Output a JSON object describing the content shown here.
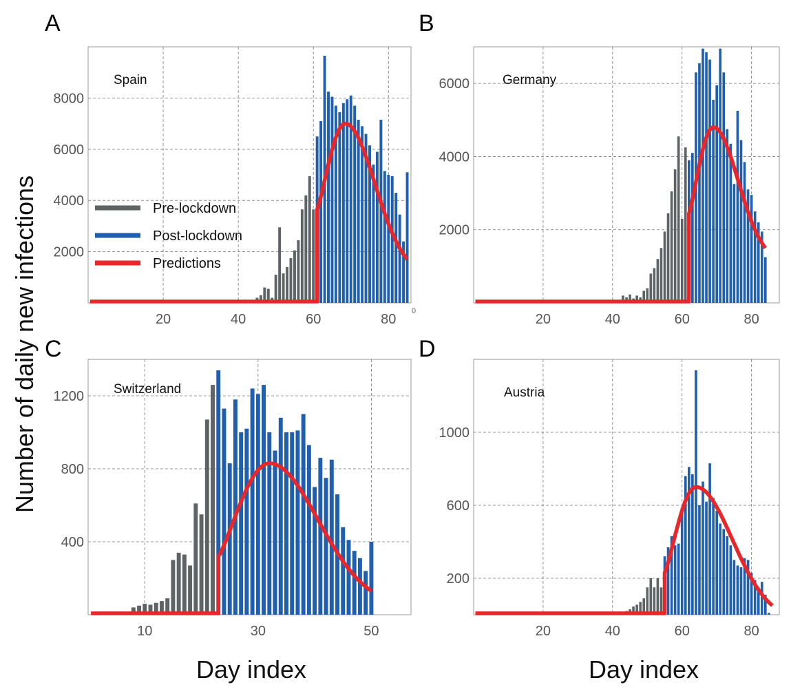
{
  "figure": {
    "ylabel": "Number of daily new infections",
    "xlabel_left": "Day index",
    "xlabel_right": "Day index",
    "stray_mark": "0",
    "colors": {
      "pre": "#5e6366",
      "post": "#1f5fae",
      "pred": "#e8272a",
      "grid": "#777777",
      "frame": "#999999"
    },
    "legend": {
      "placement": "left-middle of panel A",
      "entries": [
        "Pre-lockdown",
        "Post-lockdown",
        "Predictions"
      ]
    }
  },
  "chart_data": [
    {
      "panel": "A",
      "type": "bar",
      "label": "Spain",
      "xlim": [
        0,
        86
      ],
      "ylim": [
        0,
        10000
      ],
      "xticks": [
        20,
        40,
        60,
        80
      ],
      "yticks": [
        2000,
        4000,
        6000,
        8000
      ],
      "lockdown_day": 61,
      "bars": [
        {
          "x": 44,
          "y": 100
        },
        {
          "x": 45,
          "y": 200
        },
        {
          "x": 46,
          "y": 300
        },
        {
          "x": 47,
          "y": 600
        },
        {
          "x": 48,
          "y": 550
        },
        {
          "x": 49,
          "y": 200
        },
        {
          "x": 50,
          "y": 1100
        },
        {
          "x": 51,
          "y": 2950
        },
        {
          "x": 52,
          "y": 1150
        },
        {
          "x": 53,
          "y": 1400
        },
        {
          "x": 54,
          "y": 1750
        },
        {
          "x": 55,
          "y": 2050
        },
        {
          "x": 56,
          "y": 2450
        },
        {
          "x": 57,
          "y": 3650
        },
        {
          "x": 58,
          "y": 4200
        },
        {
          "x": 59,
          "y": 4950
        },
        {
          "x": 60,
          "y": 3650
        },
        {
          "x": 61,
          "y": 6500
        },
        {
          "x": 62,
          "y": 7100
        },
        {
          "x": 63,
          "y": 9650
        },
        {
          "x": 64,
          "y": 8250
        },
        {
          "x": 65,
          "y": 8050
        },
        {
          "x": 66,
          "y": 7700
        },
        {
          "x": 67,
          "y": 7450
        },
        {
          "x": 68,
          "y": 7800
        },
        {
          "x": 69,
          "y": 7950
        },
        {
          "x": 70,
          "y": 8100
        },
        {
          "x": 71,
          "y": 7700
        },
        {
          "x": 72,
          "y": 7150
        },
        {
          "x": 73,
          "y": 6900
        },
        {
          "x": 74,
          "y": 6600
        },
        {
          "x": 75,
          "y": 6150
        },
        {
          "x": 76,
          "y": 5400
        },
        {
          "x": 77,
          "y": 5900
        },
        {
          "x": 78,
          "y": 7150
        },
        {
          "x": 79,
          "y": 5150
        },
        {
          "x": 80,
          "y": 5000
        },
        {
          "x": 81,
          "y": 4950
        },
        {
          "x": 82,
          "y": 4300
        },
        {
          "x": 83,
          "y": 3450
        },
        {
          "x": 84,
          "y": 2400
        },
        {
          "x": 85,
          "y": 5100
        }
      ],
      "prediction": {
        "start": 61,
        "end": 85,
        "peak_x": 68.5,
        "peak_y": 7000,
        "start_y": 3650,
        "end_y": 1700
      }
    },
    {
      "panel": "B",
      "type": "bar",
      "label": "Germany",
      "xlim": [
        0,
        88
      ],
      "ylim": [
        0,
        7000
      ],
      "xticks": [
        20,
        40,
        60,
        80
      ],
      "yticks": [
        2000,
        4000,
        6000
      ],
      "lockdown_day": 62,
      "bars": [
        {
          "x": 43,
          "y": 200
        },
        {
          "x": 44,
          "y": 150
        },
        {
          "x": 45,
          "y": 230
        },
        {
          "x": 46,
          "y": 120
        },
        {
          "x": 47,
          "y": 200
        },
        {
          "x": 48,
          "y": 150
        },
        {
          "x": 49,
          "y": 330
        },
        {
          "x": 50,
          "y": 400
        },
        {
          "x": 51,
          "y": 800
        },
        {
          "x": 52,
          "y": 950
        },
        {
          "x": 53,
          "y": 1200
        },
        {
          "x": 54,
          "y": 1500
        },
        {
          "x": 55,
          "y": 1950
        },
        {
          "x": 56,
          "y": 2450
        },
        {
          "x": 57,
          "y": 3050
        },
        {
          "x": 58,
          "y": 3650
        },
        {
          "x": 59,
          "y": 4550
        },
        {
          "x": 60,
          "y": 2300
        },
        {
          "x": 61,
          "y": 4250
        },
        {
          "x": 62,
          "y": 3900
        },
        {
          "x": 63,
          "y": 4100
        },
        {
          "x": 64,
          "y": 6300
        },
        {
          "x": 65,
          "y": 6550
        },
        {
          "x": 66,
          "y": 6950
        },
        {
          "x": 67,
          "y": 6850
        },
        {
          "x": 68,
          "y": 6650
        },
        {
          "x": 69,
          "y": 5550
        },
        {
          "x": 70,
          "y": 5950
        },
        {
          "x": 71,
          "y": 6950
        },
        {
          "x": 72,
          "y": 6300
        },
        {
          "x": 73,
          "y": 4750
        },
        {
          "x": 74,
          "y": 4350
        },
        {
          "x": 75,
          "y": 3250
        },
        {
          "x": 76,
          "y": 5250
        },
        {
          "x": 77,
          "y": 4450
        },
        {
          "x": 78,
          "y": 3850
        },
        {
          "x": 79,
          "y": 3100
        },
        {
          "x": 80,
          "y": 2950
        },
        {
          "x": 81,
          "y": 2500
        },
        {
          "x": 82,
          "y": 2200
        },
        {
          "x": 83,
          "y": 1950
        },
        {
          "x": 84,
          "y": 1250
        }
      ],
      "prediction": {
        "start": 62,
        "end": 84,
        "peak_x": 69,
        "peak_y": 4800,
        "start_y": 2450,
        "end_y": 1500
      }
    },
    {
      "panel": "C",
      "type": "bar",
      "label": "Switzerland",
      "xlim": [
        0,
        57
      ],
      "ylim": [
        0,
        1400
      ],
      "xticks": [
        10,
        30,
        50
      ],
      "yticks": [
        400,
        800,
        1200
      ],
      "lockdown_day": 23,
      "bars": [
        {
          "x": 6,
          "y": 10
        },
        {
          "x": 7,
          "y": 15
        },
        {
          "x": 8,
          "y": 40
        },
        {
          "x": 9,
          "y": 50
        },
        {
          "x": 10,
          "y": 60
        },
        {
          "x": 11,
          "y": 55
        },
        {
          "x": 12,
          "y": 65
        },
        {
          "x": 13,
          "y": 75
        },
        {
          "x": 14,
          "y": 90
        },
        {
          "x": 15,
          "y": 300
        },
        {
          "x": 16,
          "y": 340
        },
        {
          "x": 17,
          "y": 330
        },
        {
          "x": 18,
          "y": 270
        },
        {
          "x": 19,
          "y": 610
        },
        {
          "x": 20,
          "y": 550
        },
        {
          "x": 21,
          "y": 1070
        },
        {
          "x": 22,
          "y": 1260
        },
        {
          "x": 23,
          "y": 1340
        },
        {
          "x": 24,
          "y": 1130
        },
        {
          "x": 25,
          "y": 830
        },
        {
          "x": 26,
          "y": 1180
        },
        {
          "x": 27,
          "y": 1000
        },
        {
          "x": 28,
          "y": 1020
        },
        {
          "x": 29,
          "y": 1240
        },
        {
          "x": 30,
          "y": 1210
        },
        {
          "x": 31,
          "y": 1260
        },
        {
          "x": 32,
          "y": 1000
        },
        {
          "x": 33,
          "y": 900
        },
        {
          "x": 34,
          "y": 1080
        },
        {
          "x": 35,
          "y": 1000
        },
        {
          "x": 36,
          "y": 1000
        },
        {
          "x": 37,
          "y": 1010
        },
        {
          "x": 38,
          "y": 1100
        },
        {
          "x": 39,
          "y": 930
        },
        {
          "x": 40,
          "y": 700
        },
        {
          "x": 41,
          "y": 860
        },
        {
          "x": 42,
          "y": 750
        },
        {
          "x": 43,
          "y": 850
        },
        {
          "x": 44,
          "y": 660
        },
        {
          "x": 45,
          "y": 480
        },
        {
          "x": 46,
          "y": 410
        },
        {
          "x": 47,
          "y": 350
        },
        {
          "x": 48,
          "y": 310
        },
        {
          "x": 49,
          "y": 240
        },
        {
          "x": 50,
          "y": 400
        }
      ],
      "prediction": {
        "start": 23,
        "end": 50,
        "peak_x": 32,
        "peak_y": 830,
        "start_y": 320,
        "end_y": 130
      }
    },
    {
      "panel": "D",
      "type": "bar",
      "label": "Austria",
      "xlim": [
        0,
        88
      ],
      "ylim": [
        0,
        1400
      ],
      "xticks": [
        20,
        40,
        60,
        80
      ],
      "yticks": [
        200,
        600,
        1000
      ],
      "lockdown_day": 55,
      "bars": [
        {
          "x": 44,
          "y": 20
        },
        {
          "x": 45,
          "y": 30
        },
        {
          "x": 46,
          "y": 45
        },
        {
          "x": 47,
          "y": 55
        },
        {
          "x": 48,
          "y": 70
        },
        {
          "x": 49,
          "y": 90
        },
        {
          "x": 50,
          "y": 150
        },
        {
          "x": 51,
          "y": 200
        },
        {
          "x": 52,
          "y": 150
        },
        {
          "x": 53,
          "y": 200
        },
        {
          "x": 54,
          "y": 150
        },
        {
          "x": 55,
          "y": 320
        },
        {
          "x": 56,
          "y": 370
        },
        {
          "x": 57,
          "y": 430
        },
        {
          "x": 58,
          "y": 380
        },
        {
          "x": 59,
          "y": 390
        },
        {
          "x": 60,
          "y": 590
        },
        {
          "x": 61,
          "y": 760
        },
        {
          "x": 62,
          "y": 810
        },
        {
          "x": 63,
          "y": 770
        },
        {
          "x": 64,
          "y": 1340
        },
        {
          "x": 65,
          "y": 600
        },
        {
          "x": 66,
          "y": 730
        },
        {
          "x": 67,
          "y": 620
        },
        {
          "x": 68,
          "y": 830
        },
        {
          "x": 69,
          "y": 640
        },
        {
          "x": 70,
          "y": 570
        },
        {
          "x": 71,
          "y": 500
        },
        {
          "x": 72,
          "y": 470
        },
        {
          "x": 73,
          "y": 430
        },
        {
          "x": 74,
          "y": 380
        },
        {
          "x": 75,
          "y": 300
        },
        {
          "x": 76,
          "y": 270
        },
        {
          "x": 77,
          "y": 260
        },
        {
          "x": 78,
          "y": 310
        },
        {
          "x": 79,
          "y": 300
        },
        {
          "x": 80,
          "y": 230
        },
        {
          "x": 81,
          "y": 190
        },
        {
          "x": 82,
          "y": 150
        },
        {
          "x": 83,
          "y": 180
        },
        {
          "x": 84,
          "y": 110
        },
        {
          "x": 85,
          "y": 10
        }
      ],
      "prediction": {
        "start": 55,
        "end": 86,
        "peak_x": 64,
        "peak_y": 700,
        "start_y": 230,
        "end_y": 50
      }
    }
  ]
}
